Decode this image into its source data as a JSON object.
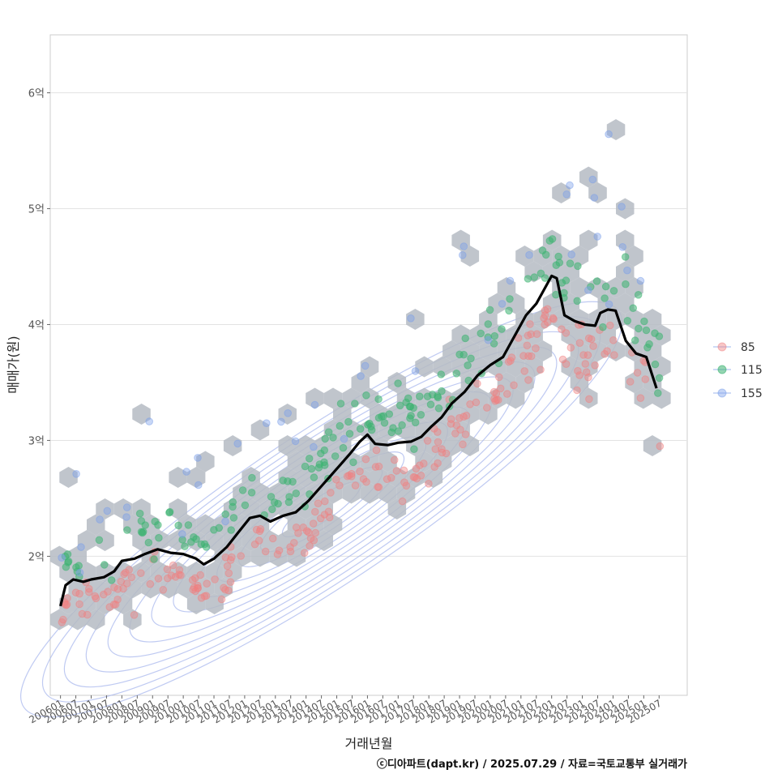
{
  "chart_data": {
    "type": "scatter",
    "title": "",
    "xlabel": "거래년월",
    "ylabel": "매매가(원)",
    "caption": "ⓒ디아파트(dapt.kr) / 2025.07.29 / 자료=국토교통부 실거래가",
    "x_ticks": [
      "200601",
      "200607",
      "200701",
      "200707",
      "200801",
      "200807",
      "200901",
      "200907",
      "201001",
      "201007",
      "201101",
      "201107",
      "201201",
      "201207",
      "201301",
      "201307",
      "201401",
      "201407",
      "201501",
      "201507",
      "201601",
      "201607",
      "201701",
      "201707",
      "201801",
      "201807",
      "201901",
      "201907",
      "202001",
      "202007",
      "202101",
      "202107",
      "202201",
      "202207",
      "202301",
      "202307",
      "202401",
      "202407",
      "202501",
      "202507"
    ],
    "y_ticks": [
      {
        "value": 2.0,
        "label": "2억"
      },
      {
        "value": 3.0,
        "label": "3억"
      },
      {
        "value": 4.0,
        "label": "4억"
      },
      {
        "value": 5.0,
        "label": "5억"
      },
      {
        "value": 6.0,
        "label": "6억"
      }
    ],
    "y_unit": "억원",
    "x_range": [
      "2005-09",
      "2026-06"
    ],
    "ylim": [
      0.8,
      6.5
    ],
    "grid": "horizontal",
    "legend_position": "right",
    "legend": [
      {
        "label": "85",
        "color": "#F08080"
      },
      {
        "label": "115",
        "color": "#3CB371"
      },
      {
        "label": "155",
        "color": "#7C9FEA"
      }
    ],
    "colors": {
      "hex": "#B5BBC3",
      "contour": "#A9B8EE",
      "trend": "#000000",
      "grid": "#E3E3E3"
    },
    "trend_line": {
      "name": "",
      "points": [
        [
          "2006-01",
          1.57
        ],
        [
          "2006-03",
          1.75
        ],
        [
          "2006-06",
          1.8
        ],
        [
          "2006-10",
          1.78
        ],
        [
          "2007-01",
          1.8
        ],
        [
          "2007-06",
          1.82
        ],
        [
          "2007-10",
          1.87
        ],
        [
          "2008-01",
          1.96
        ],
        [
          "2008-06",
          1.98
        ],
        [
          "2008-10",
          2.02
        ],
        [
          "2009-03",
          2.06
        ],
        [
          "2009-08",
          2.03
        ],
        [
          "2010-01",
          2.02
        ],
        [
          "2010-06",
          1.98
        ],
        [
          "2010-09",
          1.93
        ],
        [
          "2011-01",
          1.98
        ],
        [
          "2011-06",
          2.08
        ],
        [
          "2011-11",
          2.22
        ],
        [
          "2012-03",
          2.33
        ],
        [
          "2012-07",
          2.35
        ],
        [
          "2012-11",
          2.3
        ],
        [
          "2013-04",
          2.35
        ],
        [
          "2013-09",
          2.38
        ],
        [
          "2014-02",
          2.48
        ],
        [
          "2014-06",
          2.58
        ],
        [
          "2014-10",
          2.68
        ],
        [
          "2015-02",
          2.78
        ],
        [
          "2015-06",
          2.88
        ],
        [
          "2015-10",
          2.99
        ],
        [
          "2016-01",
          3.05
        ],
        [
          "2016-04",
          2.97
        ],
        [
          "2016-09",
          2.96
        ],
        [
          "2017-01",
          2.98
        ],
        [
          "2017-06",
          2.99
        ],
        [
          "2017-10",
          3.03
        ],
        [
          "2018-02",
          3.12
        ],
        [
          "2018-06",
          3.2
        ],
        [
          "2018-10",
          3.32
        ],
        [
          "2019-03",
          3.42
        ],
        [
          "2019-08",
          3.56
        ],
        [
          "2020-01",
          3.65
        ],
        [
          "2020-06",
          3.72
        ],
        [
          "2020-10",
          3.88
        ],
        [
          "2021-03",
          4.08
        ],
        [
          "2021-07",
          4.18
        ],
        [
          "2021-10",
          4.3
        ],
        [
          "2022-01",
          4.42
        ],
        [
          "2022-03",
          4.4
        ],
        [
          "2022-06",
          4.08
        ],
        [
          "2022-10",
          4.03
        ],
        [
          "2023-02",
          4.0
        ],
        [
          "2023-06",
          3.99
        ],
        [
          "2023-08",
          4.1
        ],
        [
          "2023-11",
          4.13
        ],
        [
          "2024-02",
          4.12
        ],
        [
          "2024-06",
          3.86
        ],
        [
          "2024-10",
          3.75
        ],
        [
          "2025-02",
          3.72
        ],
        [
          "2025-06",
          3.45
        ]
      ]
    }
  }
}
